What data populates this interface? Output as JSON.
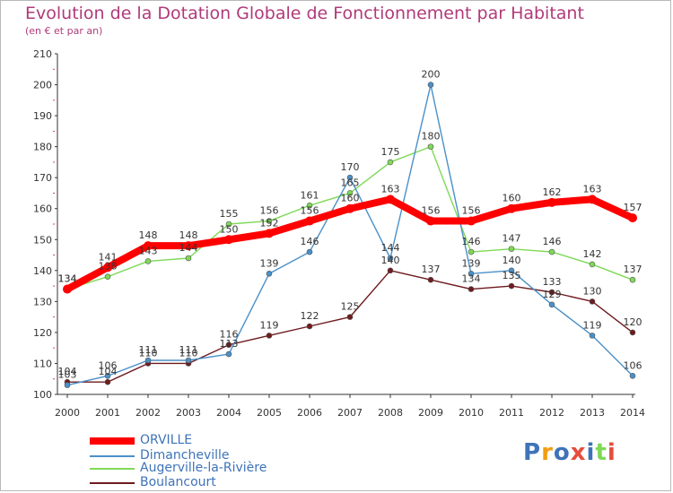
{
  "chart_data": {
    "type": "line",
    "title": "Evolution de la Dotation Globale de Fonctionnement par Habitant",
    "subtitle": "(en € et par an)",
    "xlabel": "",
    "ylabel": "",
    "ylim": [
      100,
      210
    ],
    "yticks": [
      100,
      110,
      120,
      130,
      140,
      150,
      160,
      170,
      180,
      190,
      200,
      210
    ],
    "grid": false,
    "legend_position": "bottom-left",
    "x": [
      "2000",
      "2001",
      "2002",
      "2003",
      "2004",
      "2005",
      "2006",
      "2007",
      "2008",
      "2009",
      "2010",
      "2011",
      "2012",
      "2013",
      "2014"
    ],
    "series": [
      {
        "name": "Boulancourt",
        "color": "#6e1b1f",
        "values": [
          104,
          104,
          110,
          110,
          116,
          119,
          122,
          125,
          140,
          137,
          134,
          135,
          133,
          130,
          120
        ],
        "labels": [
          "104",
          "104",
          "110",
          "110",
          "116",
          "119",
          "122",
          "125",
          "140",
          "137",
          "134",
          "135",
          "133",
          "130",
          "120"
        ]
      },
      {
        "name": "Augerville-la-Rivière",
        "color": "#7ed957",
        "values": [
          134,
          138,
          143,
          144,
          155,
          156,
          161,
          165,
          175,
          180,
          146,
          147,
          146,
          142,
          137
        ],
        "labels": [
          "134",
          "138",
          "143",
          "144",
          "155",
          "156",
          "161",
          "165",
          "175",
          "180",
          "146",
          "147",
          "146",
          "142",
          "137"
        ]
      },
      {
        "name": "Dimancheville",
        "color": "#4a90c8",
        "values": [
          103,
          106,
          111,
          111,
          113,
          139,
          146,
          170,
          144,
          200,
          139,
          140,
          129,
          119,
          106
        ],
        "labels": [
          "103",
          "106",
          "111",
          "111",
          "113",
          "139",
          "146",
          "170",
          "144",
          "200",
          "139",
          "140",
          "129",
          "119",
          "106"
        ]
      },
      {
        "name": "ORVILLE",
        "color": "#ff0000",
        "values": [
          134,
          141,
          148,
          148,
          150,
          152,
          156,
          160,
          163,
          156,
          156,
          160,
          162,
          163,
          157
        ],
        "labels": [
          "134",
          "141",
          "148",
          "148",
          "150",
          "152",
          "156",
          "160",
          "163",
          "156",
          "156",
          "160",
          "162",
          "163",
          "157"
        ]
      }
    ]
  },
  "legend": {
    "items": [
      {
        "label": "ORVILLE",
        "color": "#ff0000"
      },
      {
        "label": "Dimancheville",
        "color": "#4a90c8"
      },
      {
        "label": "Augerville-la-Rivière",
        "color": "#7ed957"
      },
      {
        "label": "Boulancourt",
        "color": "#6e1b1f"
      }
    ]
  },
  "logo": {
    "letters": [
      "P",
      "r",
      "o",
      "x",
      "i",
      "t",
      "i"
    ],
    "colors": [
      "#3e73b8",
      "#f39c12",
      "#3e73b8",
      "#e74c3c",
      "#3e73b8",
      "#7ed957",
      "#e74c3c"
    ]
  }
}
